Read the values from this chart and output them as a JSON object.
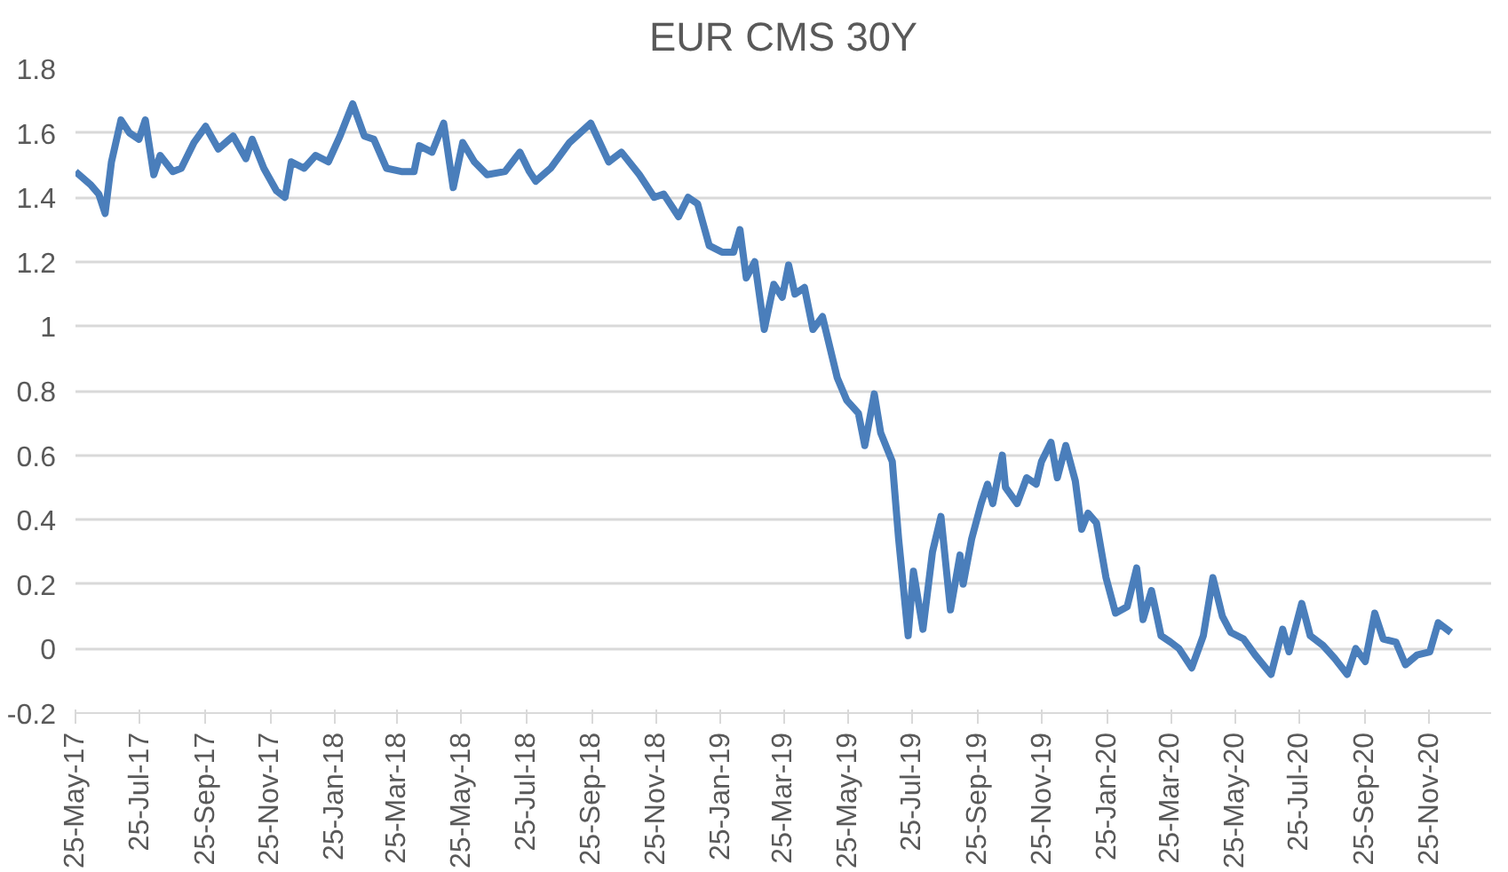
{
  "chart_data": {
    "type": "line",
    "title": "EUR CMS 30Y",
    "x": [
      "2017-05-25",
      "2017-06-08",
      "2017-06-16",
      "2017-06-22",
      "2017-06-28",
      "2017-07-07",
      "2017-07-15",
      "2017-07-24",
      "2017-07-30",
      "2017-08-07",
      "2017-08-13",
      "2017-08-25",
      "2017-09-02",
      "2017-09-14",
      "2017-09-25",
      "2017-10-07",
      "2017-10-21",
      "2017-11-02",
      "2017-11-08",
      "2017-11-19",
      "2017-12-01",
      "2017-12-09",
      "2017-12-15",
      "2017-12-27",
      "2018-01-07",
      "2018-01-19",
      "2018-01-30",
      "2018-02-11",
      "2018-02-22",
      "2018-03-03",
      "2018-03-15",
      "2018-03-29",
      "2018-04-10",
      "2018-04-15",
      "2018-04-27",
      "2018-05-08",
      "2018-05-17",
      "2018-05-26",
      "2018-06-06",
      "2018-06-18",
      "2018-07-05",
      "2018-07-19",
      "2018-07-28",
      "2018-08-03",
      "2018-08-17",
      "2018-09-04",
      "2018-09-24",
      "2018-10-11",
      "2018-10-23",
      "2018-11-09",
      "2018-11-23",
      "2018-12-02",
      "2018-12-16",
      "2018-12-25",
      "2019-01-03",
      "2019-01-14",
      "2019-01-26",
      "2019-02-06",
      "2019-02-12",
      "2019-02-18",
      "2019-02-26",
      "2019-03-07",
      "2019-03-16",
      "2019-03-24",
      "2019-03-30",
      "2019-04-05",
      "2019-04-14",
      "2019-04-22",
      "2019-05-01",
      "2019-05-15",
      "2019-05-24",
      "2019-06-04",
      "2019-06-10",
      "2019-06-19",
      "2019-06-25",
      "2019-07-06",
      "2019-07-12",
      "2019-07-21",
      "2019-07-26",
      "2019-08-04",
      "2019-08-13",
      "2019-08-21",
      "2019-08-30",
      "2019-09-08",
      "2019-09-11",
      "2019-09-19",
      "2019-09-28",
      "2019-10-04",
      "2019-10-09",
      "2019-10-18",
      "2019-10-21",
      "2019-11-01",
      "2019-11-10",
      "2019-11-19",
      "2019-11-24",
      "2019-12-03",
      "2019-12-09",
      "2019-12-17",
      "2019-12-26",
      "2020-01-01",
      "2020-01-07",
      "2020-01-15",
      "2020-01-24",
      "2020-02-02",
      "2020-02-13",
      "2020-02-22",
      "2020-02-28",
      "2020-03-07",
      "2020-03-16",
      "2020-03-25",
      "2020-04-02",
      "2020-04-14",
      "2020-04-25",
      "2020-05-04",
      "2020-05-13",
      "2020-05-21",
      "2020-06-02",
      "2020-06-13",
      "2020-06-28",
      "2020-07-09",
      "2020-07-15",
      "2020-07-27",
      "2020-08-04",
      "2020-08-16",
      "2020-08-27",
      "2020-09-08",
      "2020-09-16",
      "2020-09-25",
      "2020-10-04",
      "2020-10-12",
      "2020-10-24",
      "2020-11-02",
      "2020-11-13",
      "2020-11-25",
      "2020-12-03",
      "2020-12-15"
    ],
    "series": [
      {
        "color": "#4a7ebb",
        "values": [
          1.48,
          1.44,
          1.41,
          1.35,
          1.51,
          1.64,
          1.6,
          1.58,
          1.64,
          1.47,
          1.53,
          1.48,
          1.49,
          1.57,
          1.62,
          1.55,
          1.59,
          1.52,
          1.58,
          1.49,
          1.42,
          1.4,
          1.51,
          1.49,
          1.53,
          1.51,
          1.59,
          1.69,
          1.59,
          1.58,
          1.49,
          1.48,
          1.48,
          1.56,
          1.54,
          1.63,
          1.43,
          1.57,
          1.51,
          1.47,
          1.48,
          1.54,
          1.48,
          1.45,
          1.49,
          1.57,
          1.63,
          1.51,
          1.54,
          1.47,
          1.4,
          1.41,
          1.34,
          1.4,
          1.38,
          1.25,
          1.23,
          1.23,
          1.3,
          1.15,
          1.2,
          0.99,
          1.13,
          1.09,
          1.19,
          1.1,
          1.12,
          0.99,
          1.03,
          0.84,
          0.77,
          0.73,
          0.63,
          0.79,
          0.67,
          0.58,
          0.34,
          0.04,
          0.24,
          0.06,
          0.3,
          0.41,
          0.12,
          0.29,
          0.2,
          0.34,
          0.45,
          0.51,
          0.45,
          0.6,
          0.5,
          0.45,
          0.53,
          0.51,
          0.58,
          0.64,
          0.53,
          0.63,
          0.52,
          0.37,
          0.42,
          0.39,
          0.22,
          0.11,
          0.13,
          0.25,
          0.09,
          0.18,
          0.04,
          0.02,
          0.0,
          -0.06,
          0.04,
          0.22,
          0.1,
          0.05,
          0.03,
          -0.02,
          -0.08,
          0.06,
          -0.01,
          0.14,
          0.04,
          0.01,
          -0.03,
          -0.08,
          0.0,
          -0.04,
          0.11,
          0.03,
          0.02,
          -0.05,
          -0.02,
          -0.01,
          0.08,
          0.05
        ]
      }
    ],
    "xlim": [
      "2017-05-25",
      "2021-01-22"
    ],
    "xticks": [
      {
        "value": "2017-05-25",
        "label": "25-May-17"
      },
      {
        "value": "2017-07-25",
        "label": "25-Jul-17"
      },
      {
        "value": "2017-09-25",
        "label": "25-Sep-17"
      },
      {
        "value": "2017-11-25",
        "label": "25-Nov-17"
      },
      {
        "value": "2018-01-25",
        "label": "25-Jan-18"
      },
      {
        "value": "2018-03-25",
        "label": "25-Mar-18"
      },
      {
        "value": "2018-05-25",
        "label": "25-May-18"
      },
      {
        "value": "2018-07-25",
        "label": "25-Jul-18"
      },
      {
        "value": "2018-09-25",
        "label": "25-Sep-18"
      },
      {
        "value": "2018-11-25",
        "label": "25-Nov-18"
      },
      {
        "value": "2019-01-25",
        "label": "25-Jan-19"
      },
      {
        "value": "2019-03-25",
        "label": "25-Mar-19"
      },
      {
        "value": "2019-05-25",
        "label": "25-May-19"
      },
      {
        "value": "2019-07-25",
        "label": "25-Jul-19"
      },
      {
        "value": "2019-09-25",
        "label": "25-Sep-19"
      },
      {
        "value": "2019-11-25",
        "label": "25-Nov-19"
      },
      {
        "value": "2020-01-25",
        "label": "25-Jan-20"
      },
      {
        "value": "2020-03-25",
        "label": "25-Mar-20"
      },
      {
        "value": "2020-05-25",
        "label": "25-May-20"
      },
      {
        "value": "2020-07-25",
        "label": "25-Jul-20"
      },
      {
        "value": "2020-09-25",
        "label": "25-Sep-20"
      },
      {
        "value": "2020-11-25",
        "label": "25-Nov-20"
      }
    ],
    "ylim": [
      -0.2,
      1.8
    ],
    "yticks": [
      -0.2,
      0,
      0.2,
      0.4,
      0.6,
      0.8,
      1,
      1.2,
      1.4,
      1.6,
      1.8
    ],
    "grid": "y",
    "line_style": "solid"
  }
}
